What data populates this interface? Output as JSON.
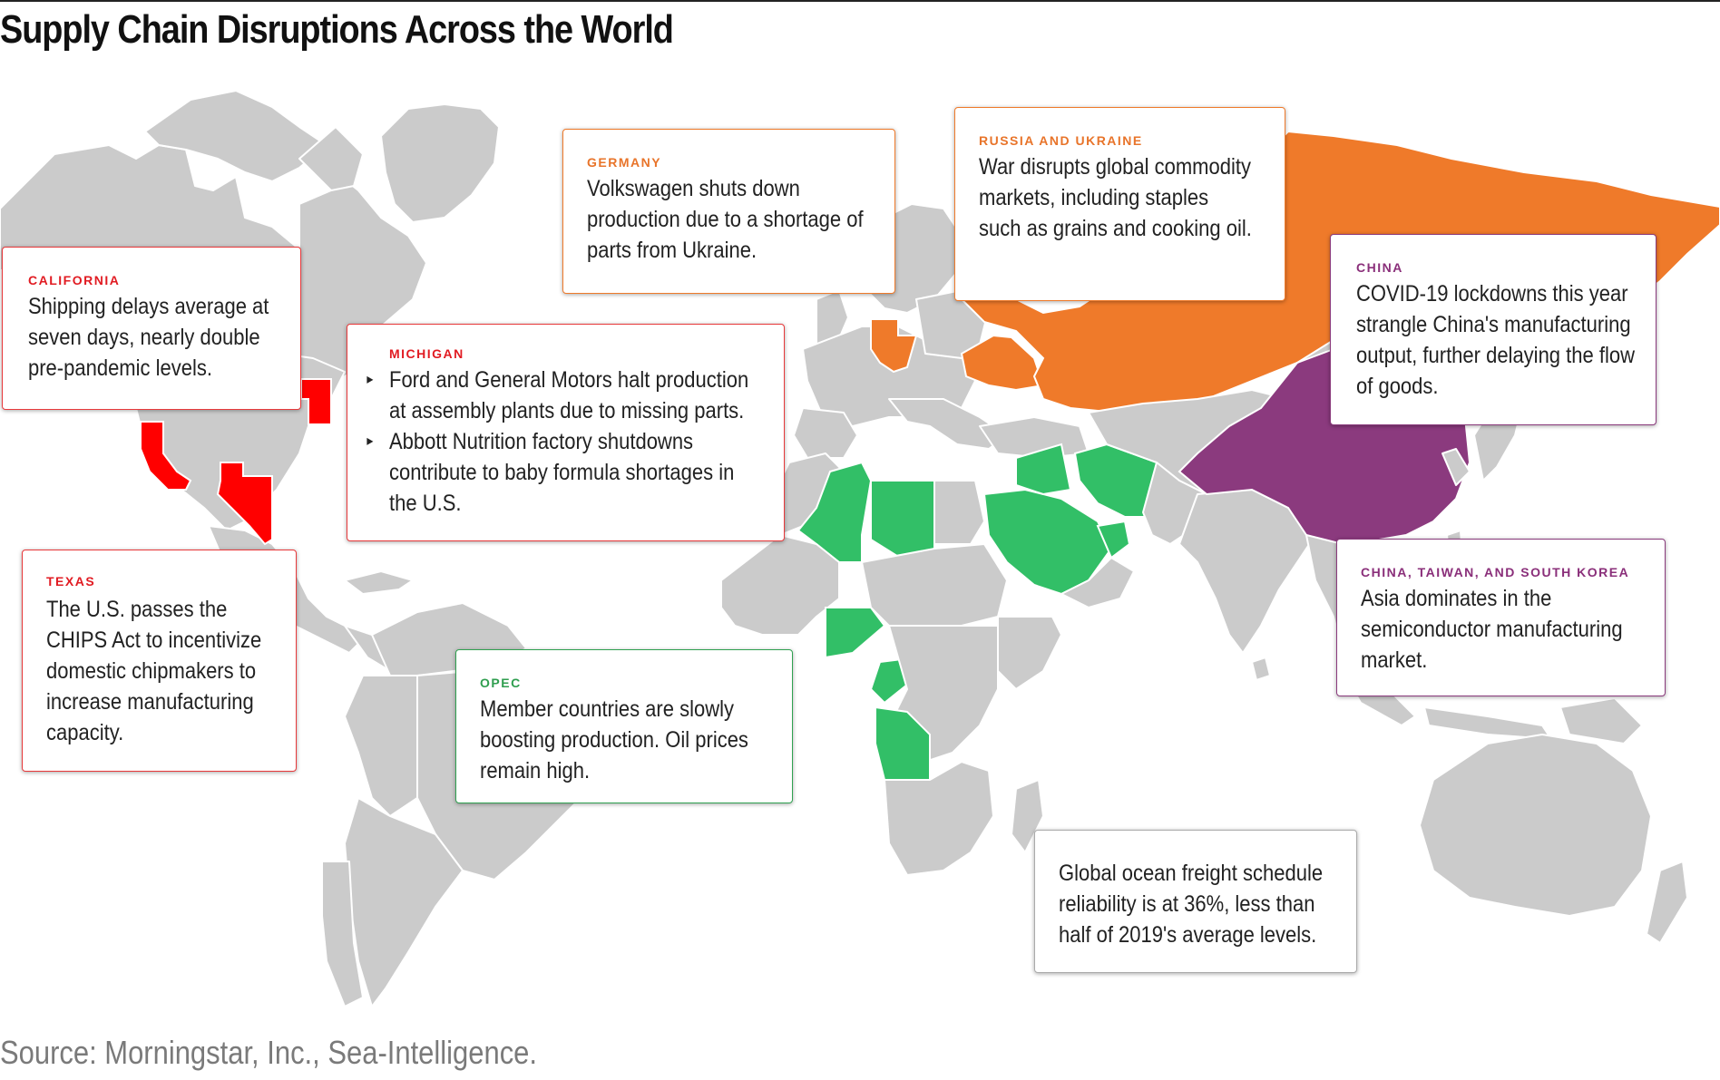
{
  "title": "Supply Chain Disruptions Across the World",
  "source": "Source: Morningstar, Inc., Sea-Intelligence.",
  "colors": {
    "land": "#cbcbcb",
    "us_disruption": "#ff0000",
    "russia_ukraine": "#ef7a2a",
    "china": "#8b3a7e",
    "opec": "#32bf67"
  },
  "callouts": {
    "california": {
      "tag": "CALIFORNIA",
      "text": "Shipping delays average at seven days, nearly double pre-pandemic levels."
    },
    "michigan": {
      "tag": "MICHIGAN",
      "bullets": [
        "Ford and General Motors halt production at assembly plants due to missing parts.",
        "Abbott Nutrition factory shutdowns contribute to baby formula shortages in the U.S."
      ],
      "bullet_glyph": "▸"
    },
    "texas": {
      "tag": "TEXAS",
      "text": "The U.S. passes the CHIPS Act to incentivize domestic chipmakers to increase manufacturing capacity."
    },
    "germany": {
      "tag": "GERMANY",
      "text": "Volkswagen shuts down production due to a shortage of parts from Ukraine."
    },
    "russia_ukraine": {
      "tag": "RUSSIA AND UKRAINE",
      "text": "War disrupts global commodity markets, including staples such as grains and cooking oil."
    },
    "china": {
      "tag": "CHINA",
      "text": "COVID-19 lockdowns this year strangle China's manufacturing output, further delaying the flow of goods."
    },
    "asia": {
      "tag": "CHINA, TAIWAN, AND SOUTH KOREA",
      "text": "Asia dominates in the semiconductor manufacturing market."
    },
    "opec": {
      "tag": "OPEC",
      "text": "Member countries are slowly boosting production. Oil prices remain high."
    },
    "freight": {
      "text": "Global ocean freight schedule reliability is at 36%, less than half of 2019's average levels."
    }
  }
}
